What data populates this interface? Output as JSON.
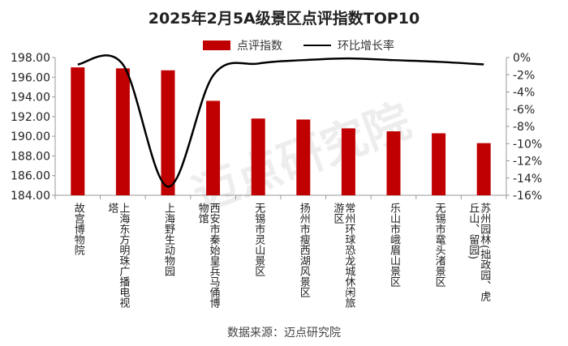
{
  "chart_data": {
    "type": "bar+line",
    "title": "2025年2月5A级景区点评指数TOP10",
    "categories": [
      "故宫博物院",
      "上海东方明珠广播电视塔",
      "上海野生动物园",
      "西安市秦始皇兵马俑博物馆",
      "无锡市灵山景区",
      "扬州市瘦西湖风景区",
      "常州环球恐龙城休闲旅游区",
      "乐山市峨眉山景区",
      "无锡市鼋头渚景区",
      "苏州园林(拙政园、虎丘山、留园)"
    ],
    "series": [
      {
        "name": "点评指数",
        "type": "bar",
        "axis": "left",
        "color": "#c00000",
        "values": [
          197.0,
          196.9,
          196.7,
          193.6,
          191.8,
          191.7,
          190.8,
          190.5,
          190.3,
          189.3
        ]
      },
      {
        "name": "环比增长率",
        "type": "line",
        "axis": "right",
        "color": "#000000",
        "values": [
          -0.8,
          -0.8,
          -15.0,
          -2.1,
          -0.7,
          -0.3,
          -0.1,
          -0.3,
          -0.5,
          -0.8
        ]
      }
    ],
    "ylim": [
      184,
      198
    ],
    "yticks": [
      "184.00",
      "186.00",
      "188.00",
      "190.00",
      "192.00",
      "194.00",
      "196.00",
      "198.00"
    ],
    "y2lim": [
      -16,
      0
    ],
    "y2ticks": [
      "-16%",
      "-14%",
      "-12%",
      "-10%",
      "-8%",
      "-6%",
      "-4%",
      "-2%",
      "0%"
    ],
    "legend": "top",
    "grid": false
  },
  "source": "数据来源：迈点研究院",
  "watermark": "迈点研究院"
}
